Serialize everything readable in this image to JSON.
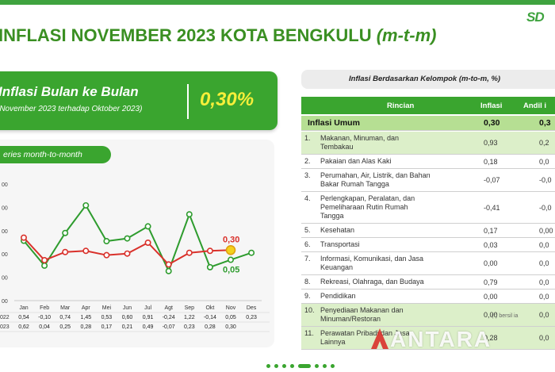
{
  "logo": "SD",
  "title": {
    "main": "INFLASI NOVEMBER 2023 KOTA BENGKULU ",
    "suffix": "(m-t-m)"
  },
  "inflation_card": {
    "heading": "Inflasi Bulan ke Bulan",
    "subheading": "(November 2023 terhadap Oktober 2023)",
    "value": "0,30%"
  },
  "series_tab": "eries month-to-month",
  "chart_data": {
    "type": "line",
    "categories": [
      "Jan",
      "Feb",
      "Mar",
      "Apr",
      "Mei",
      "Jun",
      "Jul",
      "Agt",
      "Sep",
      "Okt",
      "Nov",
      "Des"
    ],
    "series": [
      {
        "name": "2022",
        "color": "#2e9c2e",
        "values": [
          0.54,
          -0.1,
          0.74,
          1.45,
          0.53,
          0.6,
          0.91,
          -0.24,
          1.22,
          -0.14,
          0.05,
          0.23
        ],
        "table_values": [
          "0,54",
          "-0,10",
          "0,74",
          "1,45",
          "0,53",
          "0,60",
          "0,91",
          "-0,24",
          "1,22",
          "-0,14",
          "0,05",
          "0,23"
        ]
      },
      {
        "name": "2023",
        "color": "#d9312b",
        "values": [
          0.62,
          0.04,
          0.25,
          0.28,
          0.17,
          0.21,
          0.49,
          -0.07,
          0.23,
          0.28,
          0.3,
          null
        ],
        "table_values": [
          "0,62",
          "0,04",
          "0,25",
          "0,28",
          "0,17",
          "0,21",
          "0,49",
          "-0,07",
          "0,23",
          "0,28",
          "0,30",
          ""
        ]
      }
    ],
    "y_tick_labels": [
      "00",
      "00",
      "00",
      "00",
      "00",
      "00"
    ],
    "ylim": [
      -1.0,
      2.0
    ],
    "annotations": [
      {
        "text": "0,30",
        "series": "2023",
        "index": 10
      },
      {
        "text": "0,05",
        "series": "2022",
        "index": 10
      }
    ],
    "row_labels": [
      "022",
      "023"
    ]
  },
  "table": {
    "title": "Inflasi Berdasarkan Kelompok (m-to-m, %)",
    "headers": [
      "Rincian",
      "Inflasi",
      "Andil i"
    ],
    "general": {
      "label": "Inflasi Umum",
      "inflasi": "0,30",
      "andil": "0,3"
    },
    "rows": [
      {
        "no": "1.",
        "lines": [
          "Makanan, Minuman, dan",
          "Tembakau"
        ],
        "inflasi": "0,93",
        "andil": "0,2"
      },
      {
        "no": "2.",
        "lines": [
          "Pakaian dan Alas Kaki"
        ],
        "inflasi": "0,18",
        "andil": "0,0"
      },
      {
        "no": "3.",
        "lines": [
          "Perumahan, Air, Listrik, dan Bahan",
          "Bakar Rumah Tangga"
        ],
        "inflasi": "-0,07",
        "andil": "-0,0"
      },
      {
        "no": "4.",
        "lines": [
          "Perlengkapan, Peralatan, dan",
          "Pemeliharaan Rutin Rumah",
          "Tangga"
        ],
        "inflasi": "-0,41",
        "andil": "-0,0"
      },
      {
        "no": "5.",
        "lines": [
          "Kesehatan"
        ],
        "inflasi": "0,17",
        "andil": "0,00"
      },
      {
        "no": "6.",
        "lines": [
          "Transportasi"
        ],
        "inflasi": "0,03",
        "andil": "0,0"
      },
      {
        "no": "7.",
        "lines": [
          "Informasi, Komunikasi, dan Jasa",
          "Keuangan"
        ],
        "inflasi": "0,00",
        "andil": "0,0"
      },
      {
        "no": "8.",
        "lines": [
          "Rekreasi, Olahraga, dan Budaya"
        ],
        "inflasi": "0,79",
        "andil": "0,0"
      },
      {
        "no": "9.",
        "lines": [
          "Pendidikan"
        ],
        "inflasi": "0,00",
        "andil": "0,0"
      },
      {
        "no": "10.",
        "lines": [
          "Penyediaan Makanan dan",
          "Minuman/Restoran"
        ],
        "inflasi": "0,00",
        "andil": "0,0"
      },
      {
        "no": "11.",
        "lines": [
          "Perawatan Pribadi dan Jasa",
          "Lainnya"
        ],
        "inflasi": "0,28",
        "andil": "0,0"
      }
    ]
  },
  "watermark": "ANTARA",
  "watermark_note": "(*) bersil ia"
}
